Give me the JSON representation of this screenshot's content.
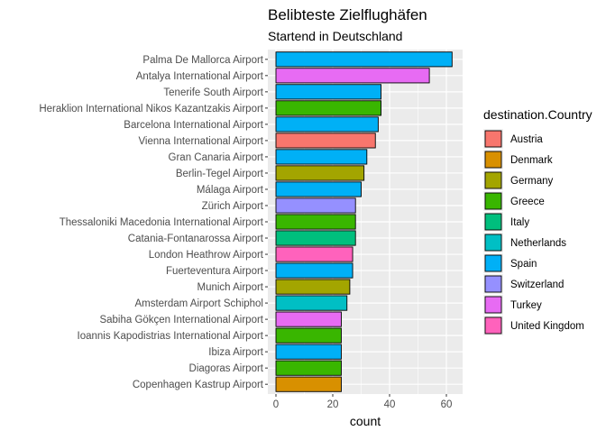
{
  "chart_data": {
    "type": "bar",
    "orientation": "horizontal",
    "title": "Belibteste Zielflughäfen",
    "subtitle": "Startend in Deutschland",
    "xlabel": "count",
    "ylabel": "",
    "xlim": [
      0,
      64
    ],
    "xticks": [
      0,
      20,
      40,
      60
    ],
    "grid": true,
    "legend_title": "destination.Country",
    "legend_position": "right",
    "legend": [
      {
        "name": "Austria",
        "color": "#F8766D"
      },
      {
        "name": "Denmark",
        "color": "#D89000"
      },
      {
        "name": "Germany",
        "color": "#A3A500"
      },
      {
        "name": "Greece",
        "color": "#39B600"
      },
      {
        "name": "Italy",
        "color": "#00BF7D"
      },
      {
        "name": "Netherlands",
        "color": "#00BFC4"
      },
      {
        "name": "Spain",
        "color": "#00B0F6"
      },
      {
        "name": "Switzerland",
        "color": "#9590FF"
      },
      {
        "name": "Turkey",
        "color": "#E76BF3"
      },
      {
        "name": "United Kingdom",
        "color": "#FF62BC"
      }
    ],
    "bars": [
      {
        "label": "Palma De Mallorca Airport",
        "value": 62,
        "country": "Spain"
      },
      {
        "label": "Antalya International Airport",
        "value": 54,
        "country": "Turkey"
      },
      {
        "label": "Tenerife South Airport",
        "value": 37,
        "country": "Spain"
      },
      {
        "label": "Heraklion International Nikos Kazantzakis Airport",
        "value": 37,
        "country": "Greece"
      },
      {
        "label": "Barcelona International Airport",
        "value": 36,
        "country": "Spain"
      },
      {
        "label": "Vienna International Airport",
        "value": 35,
        "country": "Austria"
      },
      {
        "label": "Gran Canaria Airport",
        "value": 32,
        "country": "Spain"
      },
      {
        "label": "Berlin-Tegel Airport",
        "value": 31,
        "country": "Germany"
      },
      {
        "label": "Málaga Airport",
        "value": 30,
        "country": "Spain"
      },
      {
        "label": "Zürich Airport",
        "value": 28,
        "country": "Switzerland"
      },
      {
        "label": "Thessaloniki Macedonia International Airport",
        "value": 28,
        "country": "Greece"
      },
      {
        "label": "Catania-Fontanarossa Airport",
        "value": 28,
        "country": "Italy"
      },
      {
        "label": "London Heathrow Airport",
        "value": 27,
        "country": "United Kingdom"
      },
      {
        "label": "Fuerteventura Airport",
        "value": 27,
        "country": "Spain"
      },
      {
        "label": "Munich Airport",
        "value": 26,
        "country": "Germany"
      },
      {
        "label": "Amsterdam Airport Schiphol",
        "value": 25,
        "country": "Netherlands"
      },
      {
        "label": "Sabiha Gökçen International Airport",
        "value": 23,
        "country": "Turkey"
      },
      {
        "label": "Ioannis Kapodistrias International Airport",
        "value": 23,
        "country": "Greece"
      },
      {
        "label": "Ibiza Airport",
        "value": 23,
        "country": "Spain"
      },
      {
        "label": "Diagoras Airport",
        "value": 23,
        "country": "Greece"
      },
      {
        "label": "Copenhagen Kastrup Airport",
        "value": 23,
        "country": "Denmark"
      }
    ]
  }
}
